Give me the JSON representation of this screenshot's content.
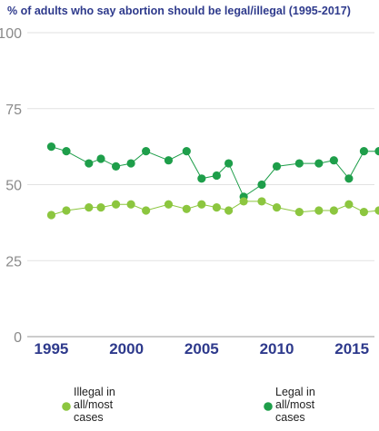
{
  "chart_data": {
    "type": "line",
    "title": "% of adults who say abortion should be legal/illegal (1995-2017)",
    "xlabel": "",
    "ylabel": "",
    "ylim": [
      0,
      100
    ],
    "xlim": [
      1993.4,
      2016.5
    ],
    "y_ticks": [
      "0",
      "25",
      "50",
      "75",
      "100"
    ],
    "x_ticks": [
      "1995",
      "2000",
      "2005",
      "2010",
      "2015"
    ],
    "grid": true,
    "legend_position": "bottom",
    "series": [
      {
        "key": "legal",
        "legend_lines": [
          "Legal in",
          "all/most",
          "cases"
        ],
        "color": "#1e9e4a",
        "x": [
          1995,
          1996,
          1997.5,
          1998.3,
          1999.3,
          2000.3,
          2001.3,
          2002.8,
          2004,
          2005,
          2006,
          2006.8,
          2007.8,
          2009,
          2010,
          2011.5,
          2012.8,
          2013.8,
          2014.8,
          2015.8,
          2016.8
        ],
        "values": [
          62.5,
          61,
          57,
          58.5,
          56,
          57,
          61,
          58,
          61,
          52,
          53,
          57,
          46,
          50,
          56,
          57,
          57,
          58,
          52,
          61,
          61
        ]
      },
      {
        "key": "illegal",
        "legend_lines": [
          "Illegal in",
          "all/most",
          "cases"
        ],
        "color": "#8cc63f",
        "x": [
          1995,
          1996,
          1997.5,
          1998.3,
          1999.3,
          2000.3,
          2001.3,
          2002.8,
          2004,
          2005,
          2006,
          2006.8,
          2007.8,
          2009,
          2010,
          2011.5,
          2012.8,
          2013.8,
          2014.8,
          2015.8,
          2016.8
        ],
        "values": [
          40,
          41.5,
          42.5,
          42.5,
          43.5,
          43.5,
          41.5,
          43.5,
          42,
          43.5,
          42.5,
          41.5,
          44.5,
          44.5,
          42.5,
          41,
          41.5,
          41.5,
          43.5,
          41,
          41.5
        ]
      }
    ]
  }
}
